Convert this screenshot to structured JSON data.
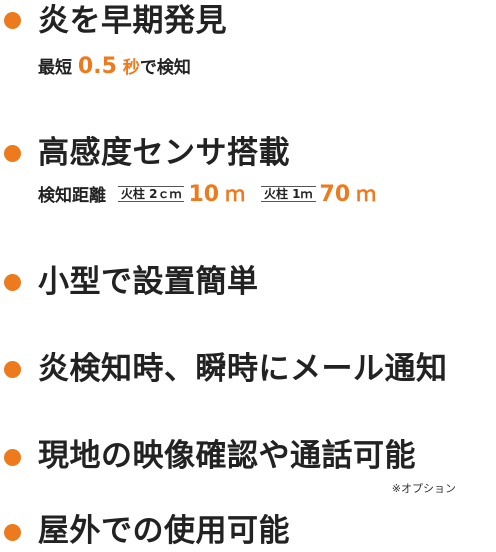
{
  "colors": {
    "accent": "#ee7a1e",
    "text": "#222222"
  },
  "features": [
    {
      "heading": "炎を早期発見",
      "detail": {
        "prefix": "最短",
        "value": "0.5",
        "unit": "秒",
        "suffix": "で検知"
      }
    },
    {
      "heading": "高感度センサ搭載",
      "detail": {
        "label": "検知距離",
        "items": [
          {
            "condition": "火柱 2ｃｍ",
            "value": "10",
            "unit": "ｍ"
          },
          {
            "condition": "火柱 1ｍ",
            "value": "70",
            "unit": "ｍ"
          }
        ]
      }
    },
    {
      "heading": "小型で設置簡単"
    },
    {
      "heading": "炎検知時、瞬時にメール通知"
    },
    {
      "heading": "現地の映像確認や通話可能",
      "note": "※オプション"
    },
    {
      "heading": "屋外での使用可能"
    }
  ]
}
